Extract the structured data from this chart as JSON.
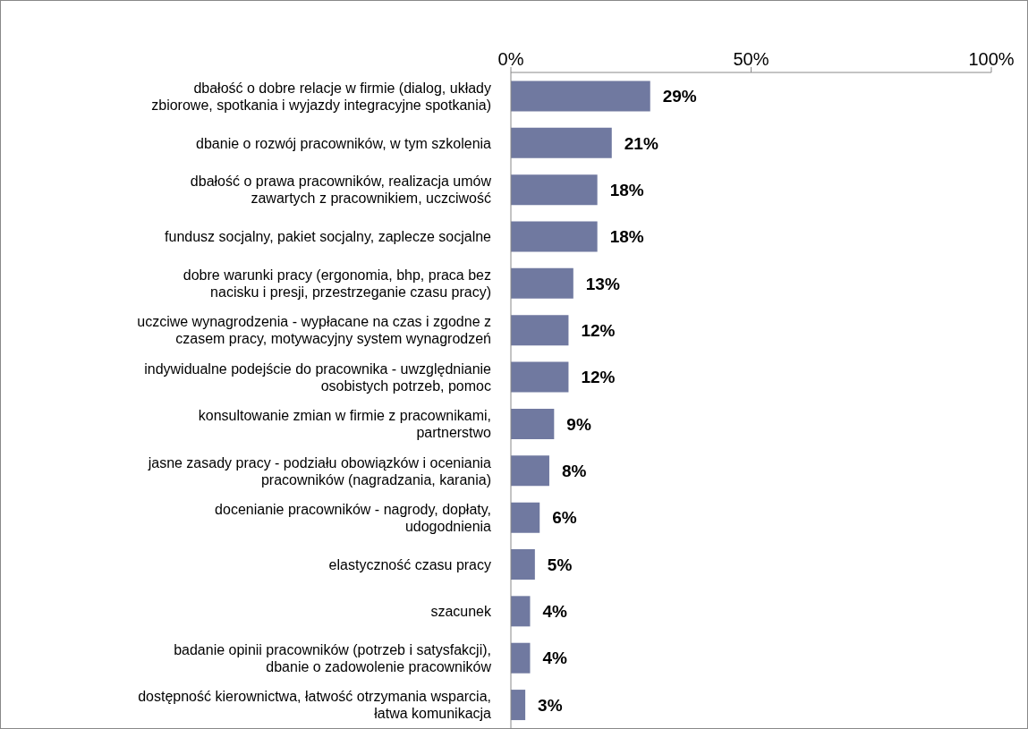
{
  "chart_data": {
    "type": "bar",
    "orientation": "horizontal",
    "categories": [
      "dbałość o dobre relacje w firmie (dialog, układy zbiorowe, spotkania i wyjazdy integracyjne spotkania)",
      "dbanie o rozwój pracowników, w tym szkolenia",
      "dbałość o prawa pracowników, realizacja umów zawartych z pracownikiem, uczciwość",
      "fundusz socjalny, pakiet socjalny, zaplecze socjalne",
      "dobre warunki pracy (ergonomia, bhp, praca bez nacisku i presji, przestrzeganie czasu pracy)",
      "uczciwe wynagrodzenia - wypłacane na czas i zgodne z czasem pracy, motywacyjny system wynagrodzeń",
      "indywidualne podejście do pracownika - uwzględnianie osobistych potrzeb, pomoc",
      "konsultowanie zmian w firmie z pracownikami, partnerstwo",
      "jasne zasady pracy - podziału obowiązków i oceniania pracowników (nagradzania, karania)",
      "docenianie pracowników - nagrody, dopłaty, udogodnienia",
      "elastyczność czasu pracy",
      "szacunek",
      "badanie opinii pracowników (potrzeb i satysfakcji), dbanie o zadowolenie pracowników",
      "dostępność kierownictwa, łatwość otrzymania wsparcia, łatwa komunikacja"
    ],
    "values": [
      29,
      21,
      18,
      18,
      13,
      12,
      12,
      9,
      8,
      6,
      5,
      4,
      4,
      3
    ],
    "value_labels": [
      "29%",
      "21%",
      "18%",
      "18%",
      "13%",
      "12%",
      "12%",
      "9%",
      "8%",
      "6%",
      "5%",
      "4%",
      "4%",
      "3%"
    ],
    "color": "#7079a0",
    "xlim": [
      0,
      100
    ],
    "xticks": [
      {
        "value": 0,
        "label": "0%"
      },
      {
        "value": 50,
        "label": "50%"
      },
      {
        "value": 100,
        "label": "100%"
      }
    ],
    "grid": false,
    "legend": false
  }
}
